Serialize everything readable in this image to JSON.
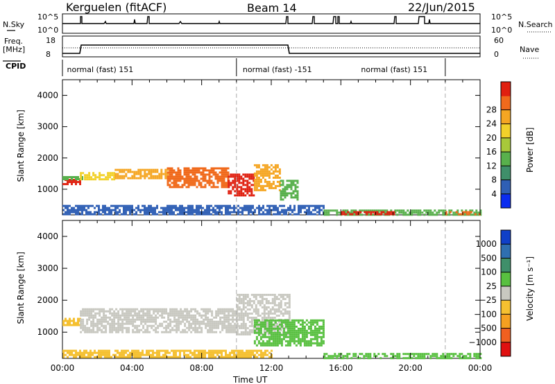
{
  "header": {
    "station": "Kerguelen (fitACF)",
    "beam": "Beam 14",
    "date": "22/Jun/2015"
  },
  "top_panels": {
    "nsky_label": "N.Sky",
    "nsearch_label": "N.Search",
    "freq_label_1": "Freq.",
    "freq_label_2": "[MHz]",
    "nave_label": "Nave",
    "cpid_label": "CPID",
    "nsky_ticks": [
      "10^5",
      "10^0"
    ],
    "nsearch_ticks": [
      "10^5",
      "10^0"
    ],
    "freq_ticks": [
      "18",
      "8"
    ],
    "nave_ticks": [
      "60",
      "0"
    ],
    "cpid_segments": [
      {
        "label": "normal (fast) 151",
        "start_h": 0.0,
        "end_h": 10.0,
        "label_at_h": 0.1
      },
      {
        "label": "normal (fast) -151",
        "start_h": 10.0,
        "end_h": 22.0,
        "label_at_h": 10.2
      },
      {
        "label": "normal (fast) 151",
        "start_h": 22.0,
        "end_h": 24.0,
        "label_at_h": 17.0
      }
    ]
  },
  "chart_data": [
    {
      "type": "heatmap",
      "name": "power",
      "ylabel": "Slant Range [km]",
      "ylim": [
        180,
        4500
      ],
      "xlim": [
        0,
        24
      ],
      "yticks": [
        1000,
        2000,
        3000,
        4000
      ],
      "colorbar_label": "Power [dB]",
      "colorbar_ticks": [
        "4",
        "8",
        "12",
        "16",
        "20",
        "24",
        "28"
      ],
      "colorbar_colors": [
        "#0a2cf0",
        "#2f5fb5",
        "#3f8f6a",
        "#58b04c",
        "#a8c83a",
        "#f2d12a",
        "#f5a623",
        "#f06a1c",
        "#e02010"
      ],
      "echo_bands": [
        {
          "x0": 0.0,
          "x1": 1.0,
          "y0": 1180,
          "y1": 1330,
          "color": "#e02010"
        },
        {
          "x0": 0.0,
          "x1": 1.1,
          "y0": 1330,
          "y1": 1420,
          "color": "#58b04c"
        },
        {
          "x0": 1.0,
          "x1": 3.0,
          "y0": 1300,
          "y1": 1550,
          "color": "#f2d12a"
        },
        {
          "x0": 3.0,
          "x1": 6.0,
          "y0": 1350,
          "y1": 1650,
          "color": "#f5a623"
        },
        {
          "x0": 6.0,
          "x1": 9.5,
          "y0": 1100,
          "y1": 1700,
          "color": "#f06a1c"
        },
        {
          "x0": 9.5,
          "x1": 11.0,
          "y0": 800,
          "y1": 1500,
          "color": "#e02010"
        },
        {
          "x0": 11.0,
          "x1": 12.5,
          "y0": 1000,
          "y1": 1800,
          "color": "#f5a623"
        },
        {
          "x0": 12.5,
          "x1": 13.5,
          "y0": 700,
          "y1": 1300,
          "color": "#58b04c"
        },
        {
          "x0": 0.0,
          "x1": 15.0,
          "y0": 200,
          "y1": 500,
          "color": "#2f5fb5"
        },
        {
          "x0": 15.0,
          "x1": 24.0,
          "y0": 200,
          "y1": 350,
          "color": "#58b04c"
        },
        {
          "x0": 16.0,
          "x1": 19.0,
          "y0": 200,
          "y1": 300,
          "color": "#e02010"
        },
        {
          "x0": 22.0,
          "x1": 24.0,
          "y0": 200,
          "y1": 300,
          "color": "#f06a1c"
        }
      ]
    },
    {
      "type": "heatmap",
      "name": "velocity",
      "ylabel": "Slant Range [km]",
      "xlabel": "Time UT",
      "ylim": [
        180,
        4500
      ],
      "xlim": [
        0,
        24
      ],
      "yticks": [
        1000,
        2000,
        3000,
        4000
      ],
      "xtick_labels": [
        "00:00",
        "04:00",
        "08:00",
        "12:00",
        "16:00",
        "20:00",
        "00:00"
      ],
      "colorbar_label": "Velocity [m s⁻¹]",
      "colorbar_ticks": [
        "1000",
        "500",
        "100",
        "25",
        "−25",
        "−100",
        "−500",
        "−1000"
      ],
      "colorbar_colors": [
        "#1040c8",
        "#2f6fb0",
        "#3f8f6a",
        "#58c040",
        "#c8c8c0",
        "#f5c030",
        "#f5a020",
        "#f06020",
        "#e01010"
      ],
      "echo_bands": [
        {
          "x0": 0.0,
          "x1": 1.0,
          "y0": 1200,
          "y1": 1450,
          "color": "#f5c030"
        },
        {
          "x0": 1.0,
          "x1": 10.0,
          "y0": 1000,
          "y1": 1750,
          "color": "#c8c8c0"
        },
        {
          "x0": 10.0,
          "x1": 13.0,
          "y0": 900,
          "y1": 2200,
          "color": "#c8c8c0"
        },
        {
          "x0": 11.0,
          "x1": 15.0,
          "y0": 600,
          "y1": 1400,
          "color": "#58c040"
        },
        {
          "x0": 0.0,
          "x1": 12.0,
          "y0": 200,
          "y1": 450,
          "color": "#f5c030"
        },
        {
          "x0": 15.0,
          "x1": 24.0,
          "y0": 200,
          "y1": 350,
          "color": "#58c040"
        }
      ]
    }
  ]
}
